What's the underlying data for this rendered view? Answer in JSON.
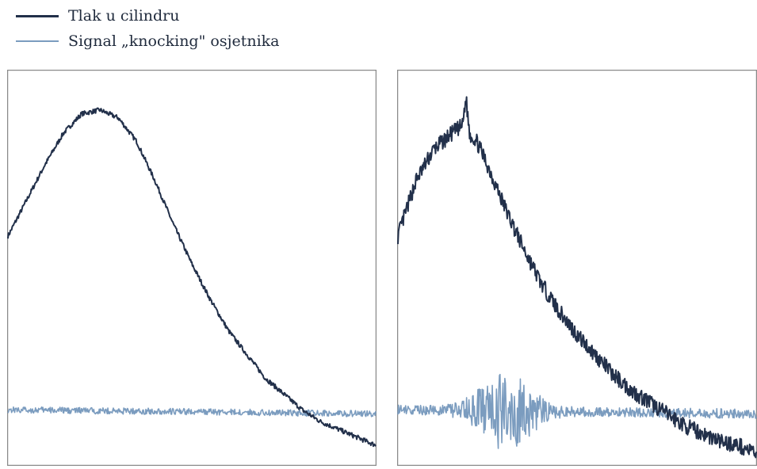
{
  "colors": {
    "pressure": "#22304a",
    "knock": "#7b9cbf",
    "frame": "#8a8a8a"
  },
  "legend": [
    {
      "label": "Tlak u cilindru",
      "color": "#22304a"
    },
    {
      "label": "Signal „knocking\" osjetnika",
      "color": "#7b9cbf"
    }
  ],
  "chart_data": [
    {
      "type": "line",
      "axes_ticks": false,
      "series": [
        {
          "name": "Tlak u cilindru",
          "x": [
            0,
            0.05,
            0.1,
            0.15,
            0.2,
            0.25,
            0.3,
            0.35,
            0.4,
            0.45,
            0.5,
            0.55,
            0.6,
            0.65,
            0.7,
            0.75,
            0.8,
            0.85,
            0.9,
            0.95,
            1.0
          ],
          "y": [
            0.58,
            0.67,
            0.76,
            0.84,
            0.89,
            0.9,
            0.88,
            0.82,
            0.72,
            0.61,
            0.51,
            0.42,
            0.34,
            0.28,
            0.22,
            0.18,
            0.14,
            0.11,
            0.09,
            0.07,
            0.05
          ],
          "noise": 0.006
        },
        {
          "name": "Signal „knocking\" osjetnika",
          "x": [
            0,
            1.0
          ],
          "y": [
            0.14,
            0.13
          ],
          "noise": 0.008
        }
      ]
    },
    {
      "type": "line",
      "axes_ticks": false,
      "series": [
        {
          "name": "Tlak u cilindru",
          "x": [
            0,
            0.05,
            0.1,
            0.15,
            0.18,
            0.19,
            0.2,
            0.22,
            0.25,
            0.3,
            0.35,
            0.4,
            0.45,
            0.5,
            0.55,
            0.6,
            0.65,
            0.7,
            0.75,
            0.8,
            0.85,
            0.9,
            0.95,
            1.0
          ],
          "y": [
            0.58,
            0.72,
            0.8,
            0.84,
            0.86,
            0.93,
            0.84,
            0.82,
            0.76,
            0.65,
            0.55,
            0.46,
            0.39,
            0.33,
            0.28,
            0.23,
            0.19,
            0.16,
            0.13,
            0.1,
            0.08,
            0.06,
            0.05,
            0.03
          ],
          "noise": 0.02
        },
        {
          "name": "Signal „knocking\" osjetnika",
          "x": [
            0,
            1.0
          ],
          "y": [
            0.14,
            0.13
          ],
          "noise": 0.012,
          "burst_center": 0.3,
          "burst_width": 0.15,
          "burst_amplitude": 0.09
        }
      ]
    }
  ]
}
